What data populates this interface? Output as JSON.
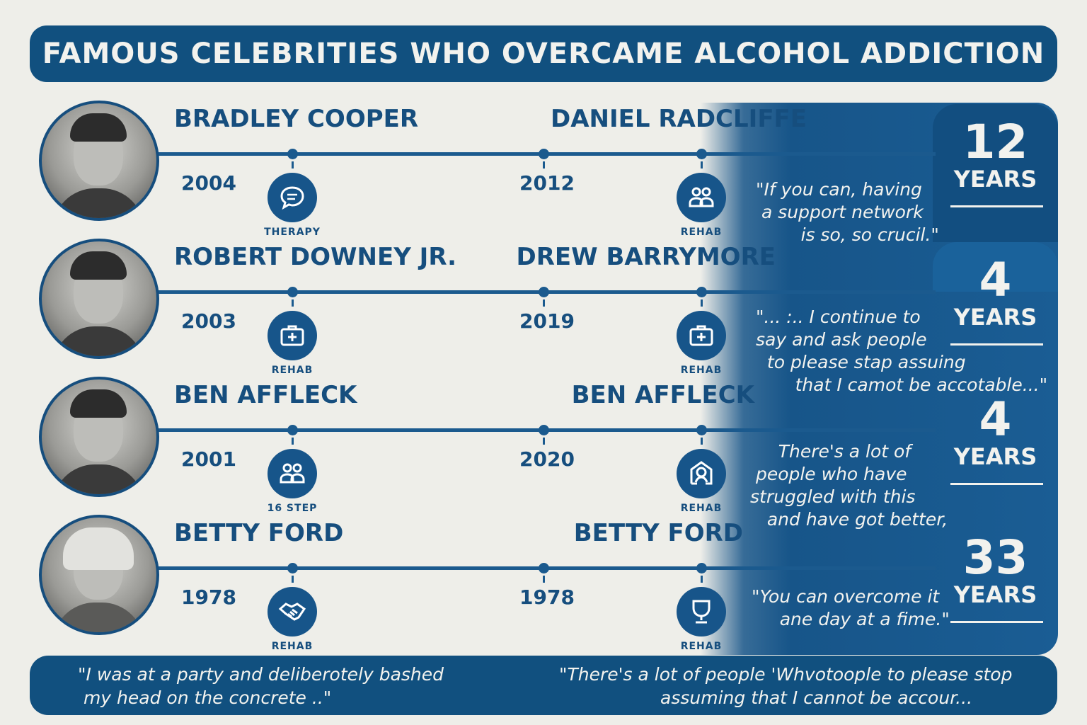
{
  "title": "FAMOUS CELEBRITIES WHO OVERCAME ALCOHOL ADDICTION",
  "colors": {
    "primary": "#11507f",
    "background": "#eeeee9",
    "text_light": "#f2f2ee"
  },
  "rows": [
    {
      "name_left": "BRADLEY COOPER",
      "year_left": "2004",
      "icon_left": "chat-bubble-icon",
      "label_left": "THERAPY",
      "name_right": "DANIEL RADCLIFFE",
      "year_right": "2012",
      "icon_right": "group-icon",
      "label_right": "REHAB",
      "quote": "\"If you can, having\n a support network\n        is so, so crucil.\"",
      "sober_number": "12",
      "sober_unit": "YEARS"
    },
    {
      "name_left": "ROBERT DOWNEY JR.",
      "year_left": "2003",
      "icon_left": "medical-kit-icon",
      "label_left": "REHAB",
      "name_right": "DREW BARRYMORE",
      "year_right": "2019",
      "icon_right": "medical-kit-icon",
      "label_right": "REHAB",
      "quote": "\"... :.. I continue to\nsay and ask people\n  to please stap assuing\n       that I camot be accotable...\"",
      "sober_number": "4",
      "sober_unit": "YEARS"
    },
    {
      "name_left": "BEN AFFLECK",
      "year_left": "2001",
      "icon_left": "group-icon",
      "label_left": "16 STEP",
      "name_right": "BEN AFFLECK",
      "year_right": "2020",
      "icon_right": "house-person-icon",
      "label_right": "REHAB",
      "quote": "     There's a lot of\n people who have\nstruggled with this\n   and have got better,",
      "sober_number": "4",
      "sober_unit": "YEARS"
    },
    {
      "name_left": "BETTY FORD",
      "year_left": "1978",
      "icon_left": "handshake-icon",
      "label_left": "REHAB",
      "name_right": "BETTY FORD",
      "year_right": "1978",
      "icon_right": "goblet-icon",
      "label_right": "REHAB",
      "quote": "\"You can overcome it\n     ane day at a fime.\"",
      "sober_number": "33",
      "sober_unit": "YEARS"
    }
  ],
  "footer": {
    "quote_left": "\"I was at a party and deliberotely bashed\n my head on the concrete ..\"",
    "quote_right": "\"There's a lot of people 'Whvotoople to please stop\n                  assuming that I cannot be accour..."
  }
}
